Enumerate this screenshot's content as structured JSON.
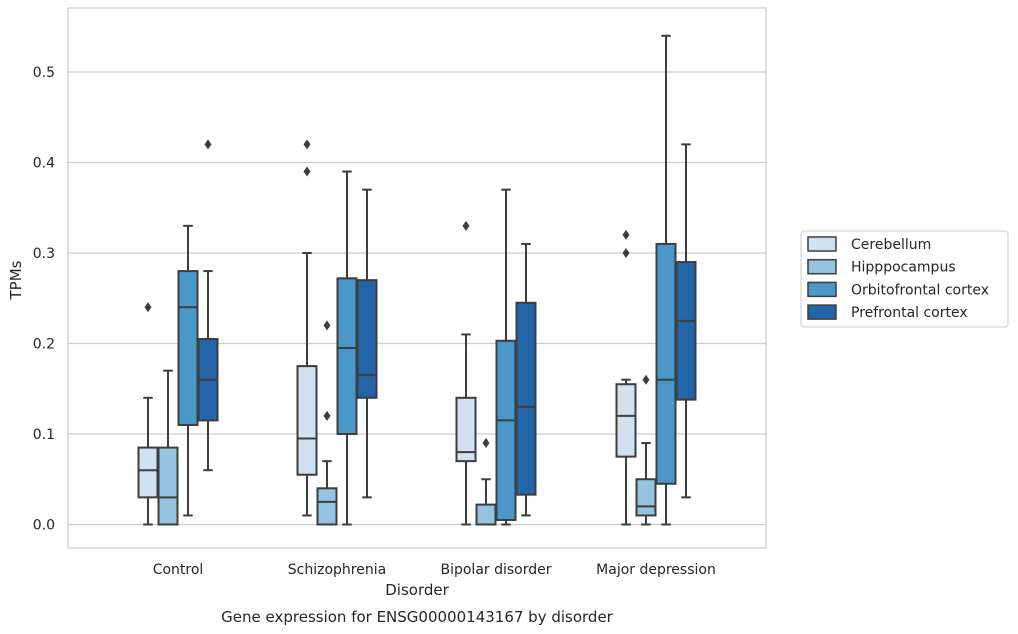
{
  "chart_data": {
    "type": "boxplot",
    "title": "",
    "caption": "Gene expression for ENSG00000143167 by disorder",
    "xlabel": "Disorder",
    "ylabel": "TPMs",
    "ylim": [
      -0.025,
      0.57
    ],
    "yticks": [
      0.0,
      0.1,
      0.2,
      0.3,
      0.4,
      0.5
    ],
    "ytick_labels": [
      "0.0",
      "0.1",
      "0.2",
      "0.3",
      "0.4",
      "0.5"
    ],
    "grid": true,
    "legend_position": "right",
    "categories": [
      "Control",
      "Schizophrenia",
      "Bipolar disorder",
      "Major depression"
    ],
    "series": [
      {
        "name": "Cerebellum",
        "color": "#d0e1f2",
        "boxes": [
          {
            "whislo": 0.0,
            "q1": 0.03,
            "med": 0.06,
            "q3": 0.085,
            "whishi": 0.14,
            "fliers": [
              0.24
            ]
          },
          {
            "whislo": 0.01,
            "q1": 0.055,
            "med": 0.095,
            "q3": 0.175,
            "whishi": 0.3,
            "fliers": [
              0.39,
              0.42
            ]
          },
          {
            "whislo": 0.0,
            "q1": 0.07,
            "med": 0.08,
            "q3": 0.14,
            "whishi": 0.21,
            "fliers": [
              0.33
            ]
          },
          {
            "whislo": 0.0,
            "q1": 0.075,
            "med": 0.12,
            "q3": 0.155,
            "whishi": 0.16,
            "fliers": [
              0.3,
              0.32
            ]
          }
        ]
      },
      {
        "name": "Hipppocampus",
        "color": "#94c4df",
        "boxes": [
          {
            "whislo": 0.0,
            "q1": 0.0,
            "med": 0.03,
            "q3": 0.085,
            "whishi": 0.17,
            "fliers": []
          },
          {
            "whislo": 0.0,
            "q1": 0.0,
            "med": 0.025,
            "q3": 0.04,
            "whishi": 0.07,
            "fliers": [
              0.12,
              0.22
            ]
          },
          {
            "whislo": 0.0,
            "q1": 0.0,
            "med": 0.0,
            "q3": 0.022,
            "whishi": 0.05,
            "fliers": [
              0.09
            ]
          },
          {
            "whislo": 0.0,
            "q1": 0.01,
            "med": 0.02,
            "q3": 0.05,
            "whishi": 0.09,
            "fliers": [
              0.16
            ]
          }
        ]
      },
      {
        "name": "Orbitofrontal cortex",
        "color": "#4a98c9",
        "boxes": [
          {
            "whislo": 0.01,
            "q1": 0.11,
            "med": 0.24,
            "q3": 0.28,
            "whishi": 0.33,
            "fliers": []
          },
          {
            "whislo": 0.0,
            "q1": 0.1,
            "med": 0.195,
            "q3": 0.272,
            "whishi": 0.39,
            "fliers": []
          },
          {
            "whislo": 0.0,
            "q1": 0.005,
            "med": 0.115,
            "q3": 0.203,
            "whishi": 0.37,
            "fliers": []
          },
          {
            "whislo": 0.0,
            "q1": 0.045,
            "med": 0.16,
            "q3": 0.31,
            "whishi": 0.54,
            "fliers": []
          }
        ]
      },
      {
        "name": "Prefrontal cortex",
        "color": "#2464a9",
        "boxes": [
          {
            "whislo": 0.06,
            "q1": 0.115,
            "med": 0.16,
            "q3": 0.205,
            "whishi": 0.28,
            "fliers": [
              0.42
            ]
          },
          {
            "whislo": 0.03,
            "q1": 0.14,
            "med": 0.165,
            "q3": 0.27,
            "whishi": 0.37,
            "fliers": []
          },
          {
            "whislo": 0.01,
            "q1": 0.033,
            "med": 0.13,
            "q3": 0.245,
            "whishi": 0.31,
            "fliers": []
          },
          {
            "whislo": 0.03,
            "q1": 0.138,
            "med": 0.225,
            "q3": 0.29,
            "whishi": 0.42,
            "fliers": []
          }
        ]
      }
    ]
  }
}
